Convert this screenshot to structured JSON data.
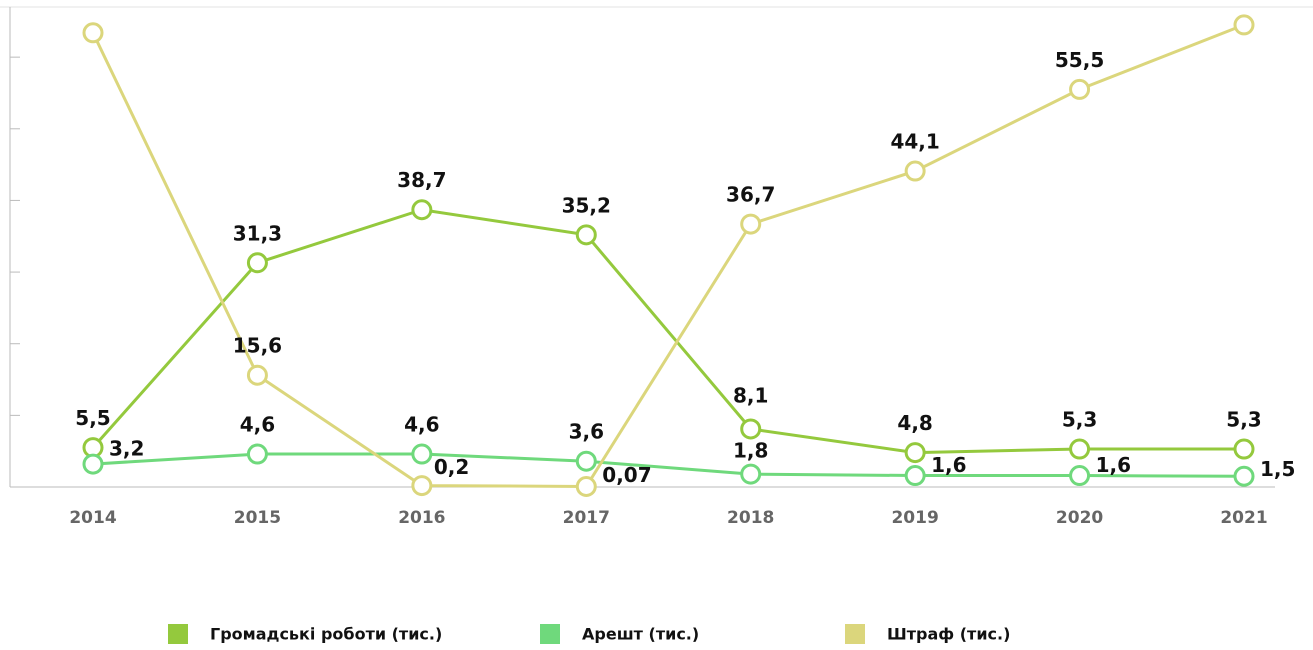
{
  "chart_data": {
    "type": "line",
    "categories": [
      "2014",
      "2015",
      "2016",
      "2017",
      "2018",
      "2019",
      "2020",
      "2021"
    ],
    "ylim": [
      0,
      67
    ],
    "yticks": [
      0,
      10,
      20,
      30,
      40,
      50,
      60
    ],
    "series": [
      {
        "name": "Громадські роботи (тис.)",
        "color": "#94c93d",
        "values": [
          5.5,
          31.3,
          38.7,
          35.2,
          8.1,
          4.8,
          5.3,
          5.3
        ],
        "value_labels": [
          "5,5",
          "31,3",
          "38,7",
          "35,2",
          "8,1",
          "4,8",
          "5,3",
          "5,3"
        ]
      },
      {
        "name": "Арешт (тис.)",
        "color": "#6fd97c",
        "values": [
          3.2,
          4.6,
          4.6,
          3.6,
          1.8,
          1.6,
          1.6,
          1.5
        ],
        "value_labels": [
          "3,2",
          "4,6",
          "4,6",
          "3,6",
          "1,8",
          "1,6",
          "1,6",
          "1,5"
        ]
      },
      {
        "name": "Штраф (тис.)",
        "color": "#dbd67c",
        "values": [
          63.4,
          15.6,
          0.2,
          0.07,
          36.7,
          44.1,
          55.5,
          64.5
        ],
        "value_labels": [
          null,
          "15,6",
          "0,2",
          "0,07",
          "36,7",
          "44,1",
          "55,5",
          null
        ]
      }
    ]
  }
}
